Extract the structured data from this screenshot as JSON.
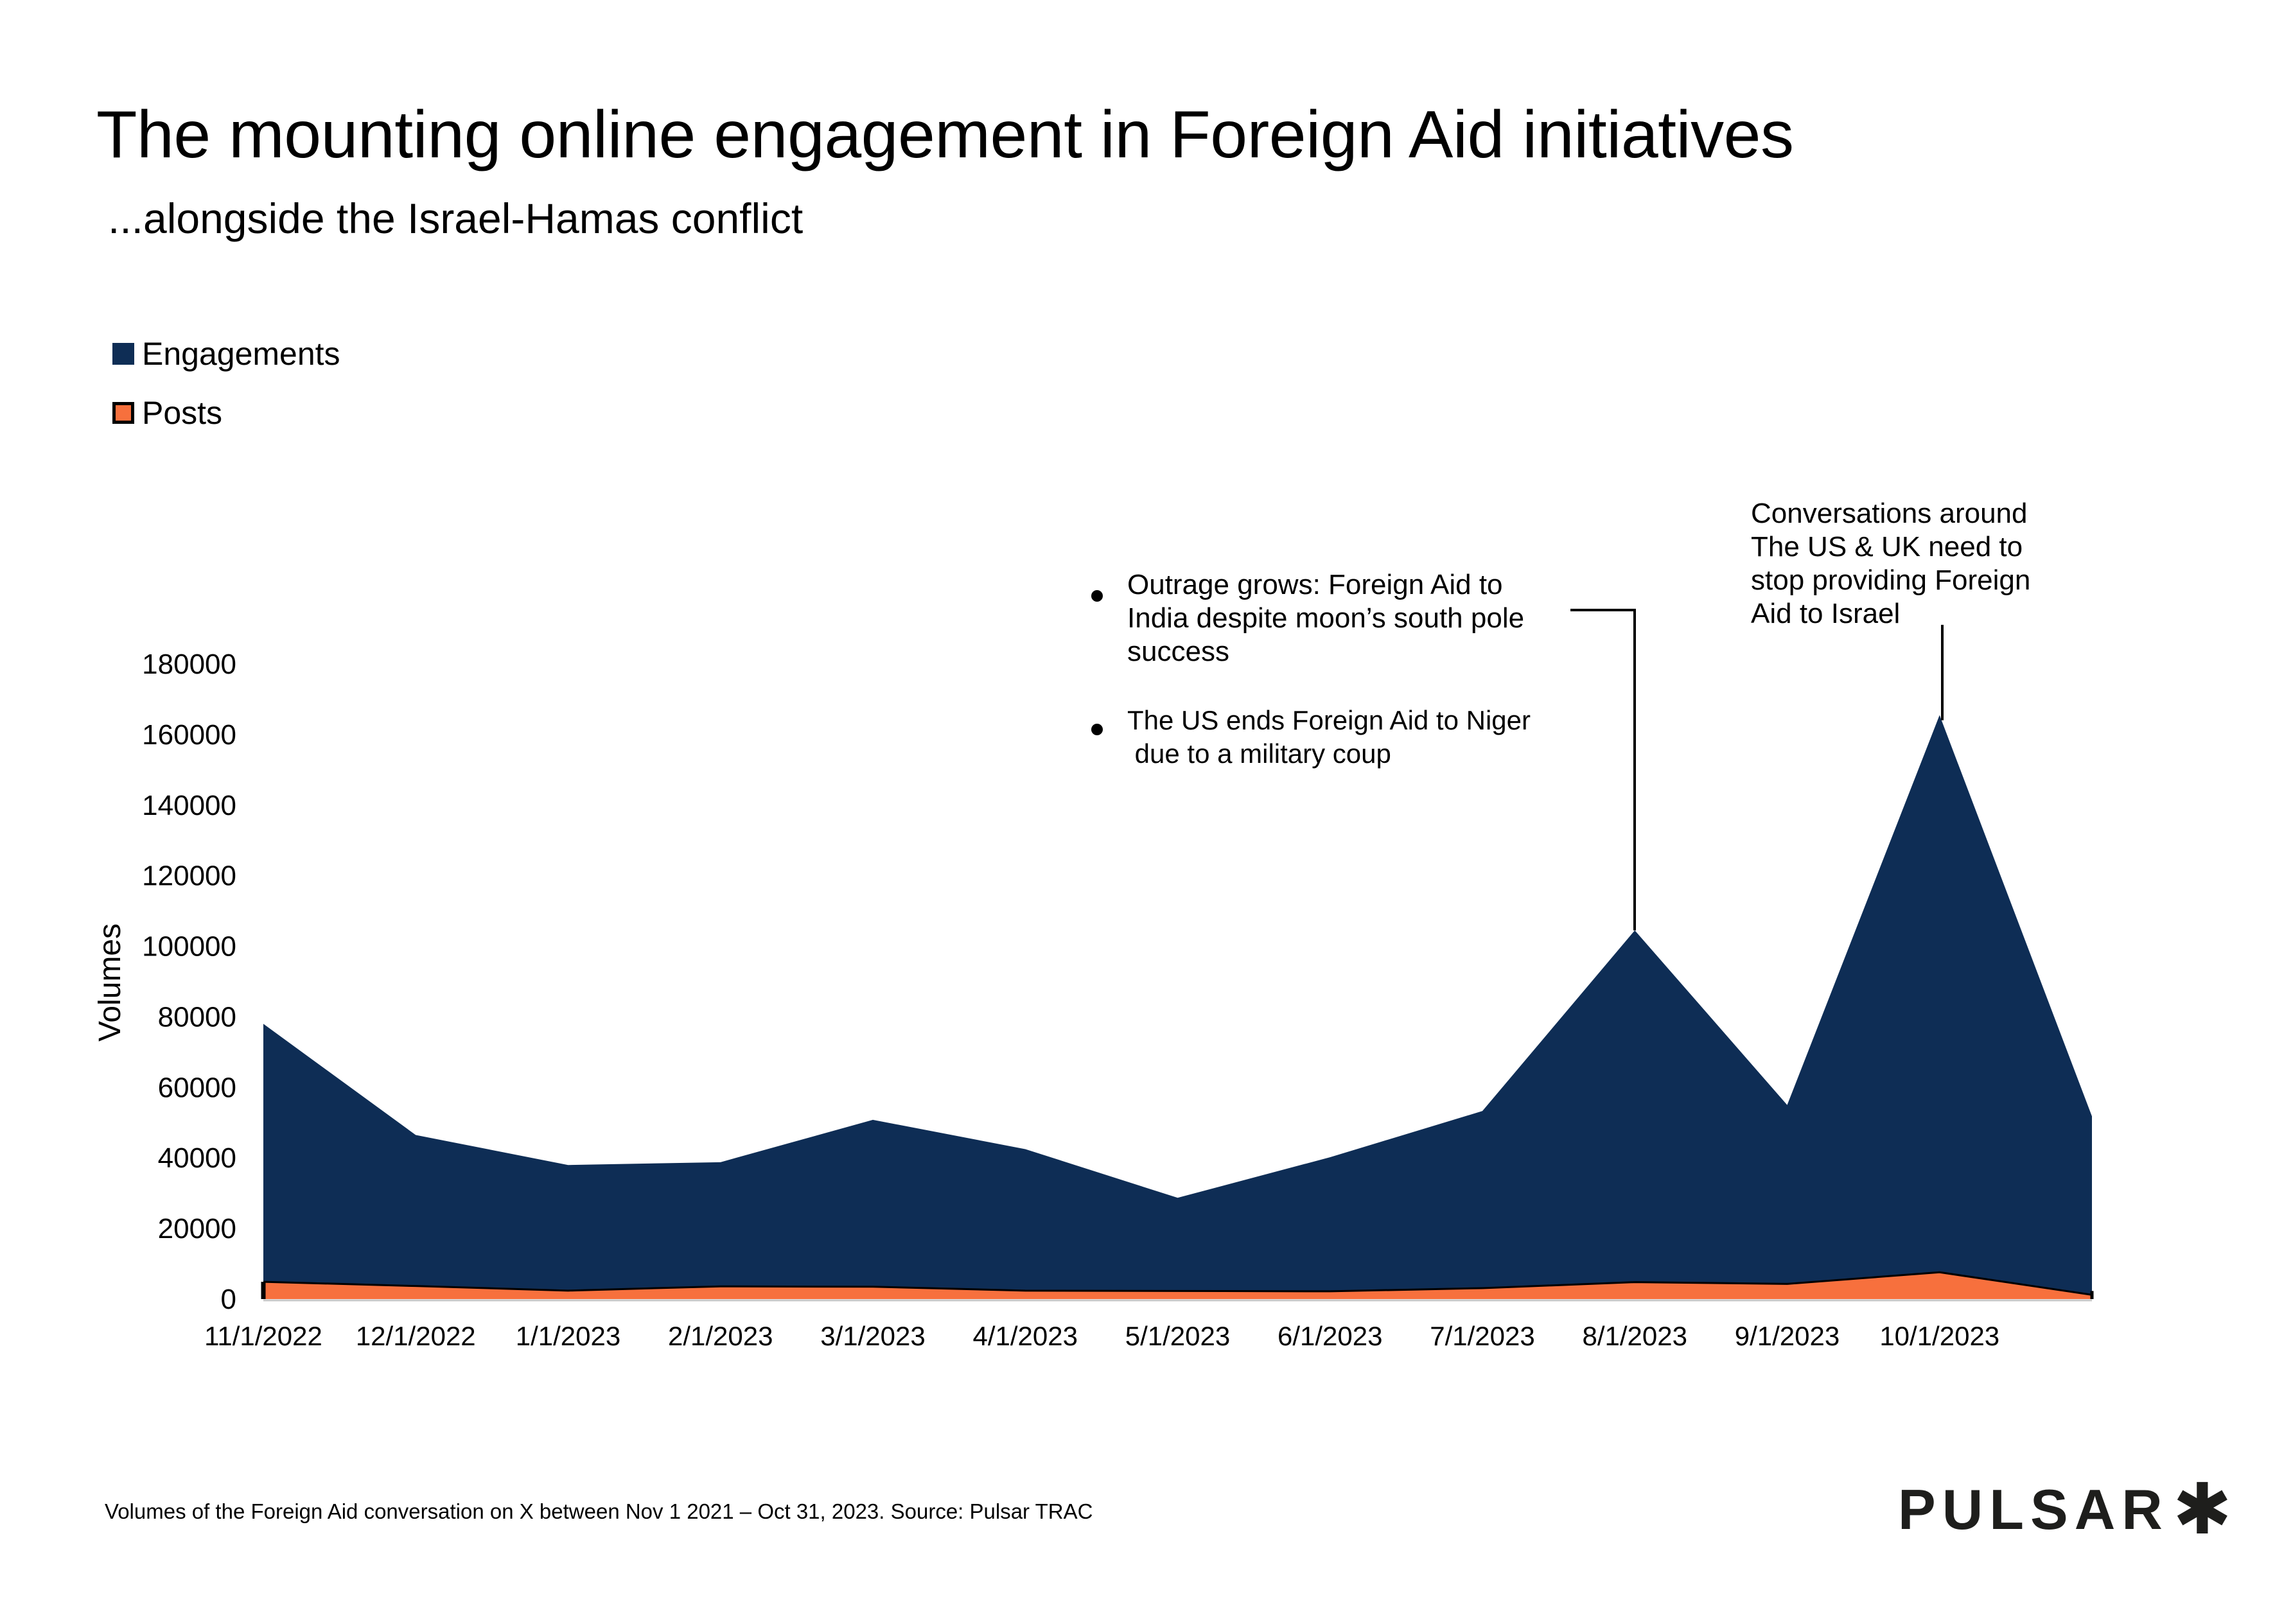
{
  "header": {
    "title": "The mounting online engagement in Foreign Aid initiatives",
    "subtitle": "...alongside the Israel-Hamas conflict"
  },
  "legend": [
    {
      "label": "Engagements",
      "color": "#0e2d55"
    },
    {
      "label": "Posts",
      "color": "#f7703d"
    }
  ],
  "annotations": {
    "august": {
      "bullets": [
        [
          "Outrage grows: Foreign Aid to",
          "India despite moon’s south pole",
          "success"
        ],
        [
          "The US ends Foreign Aid to Niger",
          " due to a military coup"
        ]
      ]
    },
    "october": {
      "lines": [
        "Conversations around",
        "The US & UK need to",
        "stop providing Foreign",
        "Aid to Israel"
      ]
    }
  },
  "footer": {
    "note": "Volumes of the Foreign Aid conversation on X between Nov 1 2021 – Oct 31, 2023. Source: Pulsar TRAC",
    "logo": "PULSAR",
    "logo_mark": "✱"
  },
  "chart_data": {
    "type": "area",
    "title": "The mounting online engagement in Foreign Aid initiatives",
    "subtitle": "...alongside the Israel-Hamas conflict",
    "xlabel": "",
    "ylabel": "Volumes",
    "ylim": [
      0,
      180000
    ],
    "yticks": [
      0,
      20000,
      40000,
      60000,
      80000,
      100000,
      120000,
      140000,
      160000,
      180000
    ],
    "x": [
      "11/1/2022",
      "12/1/2022",
      "1/1/2023",
      "2/1/2023",
      "3/1/2023",
      "4/1/2023",
      "5/1/2023",
      "6/1/2023",
      "7/1/2023",
      "8/1/2023",
      "9/1/2023",
      "10/1/2023",
      "11/1/2023"
    ],
    "xtick_labels": [
      "11/1/2022",
      "12/1/2022",
      "1/1/2023",
      "2/1/2023",
      "3/1/2023",
      "4/1/2023",
      "5/1/2023",
      "6/1/2023",
      "7/1/2023",
      "8/1/2023",
      "9/1/2023",
      "10/1/2023",
      ""
    ],
    "series": [
      {
        "name": "Engagements",
        "color": "#0e2d55",
        "values": [
          78000,
          46500,
          38000,
          38800,
          50800,
          42500,
          28700,
          40200,
          53300,
          104500,
          55000,
          165500,
          51800
        ]
      },
      {
        "name": "Posts",
        "color": "#f7703d",
        "values": [
          4900,
          3700,
          2400,
          3600,
          3500,
          2400,
          2300,
          2200,
          3100,
          4800,
          4300,
          7600,
          1200
        ]
      }
    ],
    "grid": false,
    "legend_position": "top-left"
  }
}
